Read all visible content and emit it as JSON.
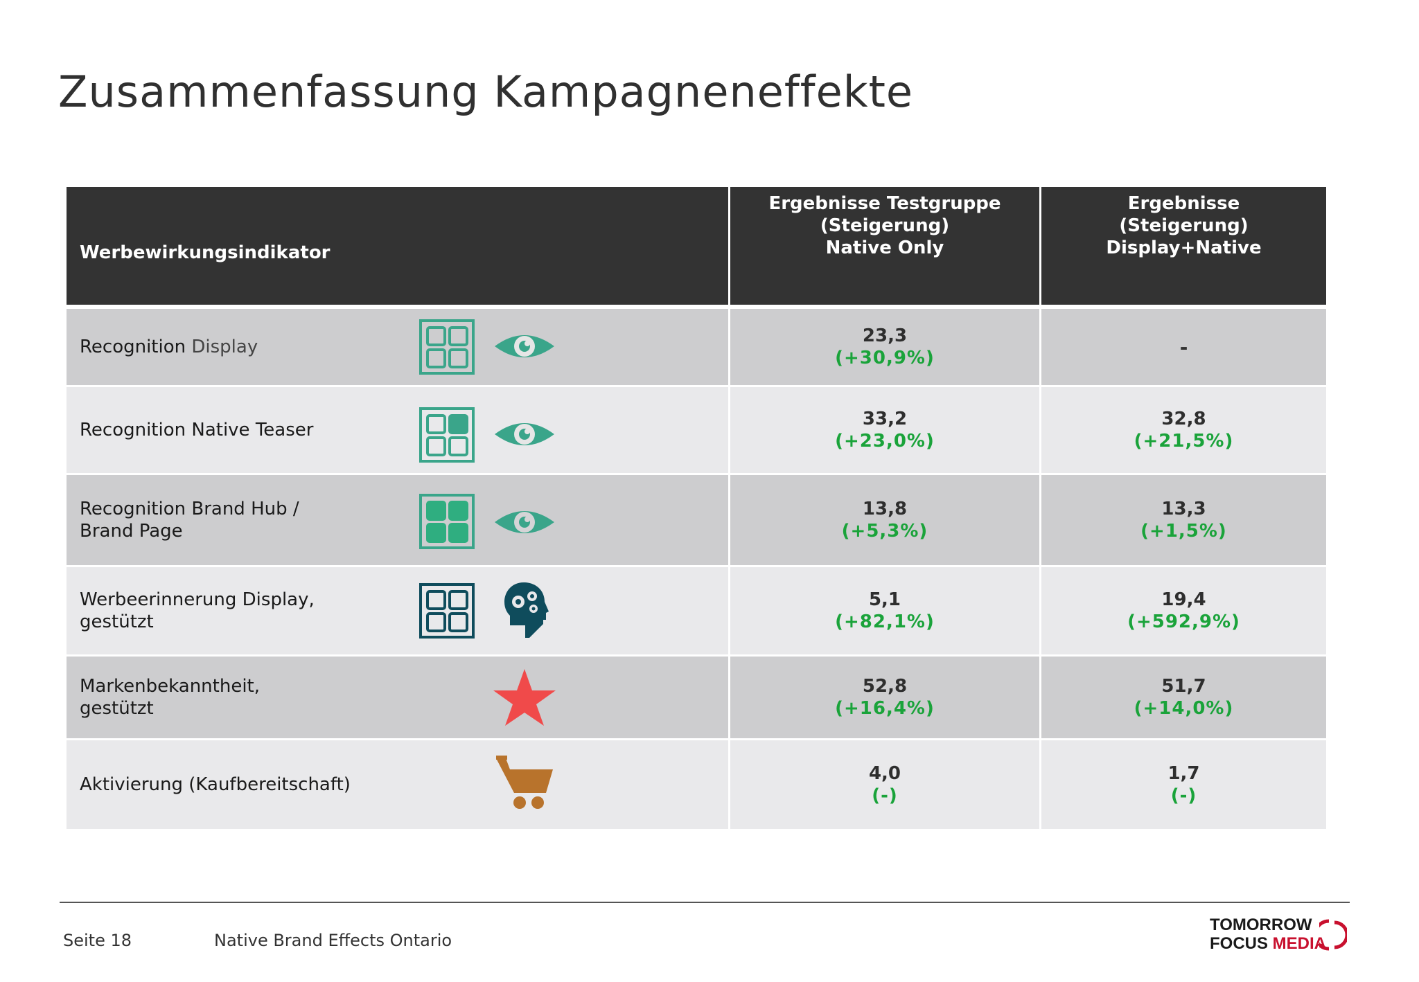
{
  "title": "Zusammenfassung Kampagneneffekte",
  "table": {
    "headers": {
      "indicator": "Werbewirkungsindikator",
      "native_only": "Ergebnisse Testgruppe\n(Steigerung)\nNative Only",
      "display_native": "Ergebnisse\n(Steigerung)\nDisplay+Native"
    },
    "rows": [
      {
        "label_main": "Recognition ",
        "label_sub": "Display",
        "icons": [
          "grid-outline-icon",
          "eye-icon"
        ],
        "native_only_value": "23,3",
        "native_only_pct": "(+30,9%)",
        "display_native_value": "-",
        "display_native_pct": ""
      },
      {
        "label_main": "Recognition Native Teaser",
        "label_sub": "",
        "icons": [
          "grid-one-filled-icon",
          "eye-icon"
        ],
        "native_only_value": "33,2",
        "native_only_pct": "(+23,0%)",
        "display_native_value": "32,8",
        "display_native_pct": "(+21,5%)"
      },
      {
        "label_main": "Recognition Brand Hub /\nBrand Page",
        "label_sub": "",
        "icons": [
          "grid-filled-icon",
          "eye-icon"
        ],
        "native_only_value": "13,8",
        "native_only_pct": "(+5,3%)",
        "display_native_value": "13,3",
        "display_native_pct": "(+1,5%)"
      },
      {
        "label_main": "Werbeerinnerung Display,\n gestützt",
        "label_sub": "",
        "icons": [
          "grid-outline-dark-icon",
          "head-gears-icon"
        ],
        "native_only_value": "5,1",
        "native_only_pct": "(+82,1%)",
        "display_native_value": "19,4",
        "display_native_pct": "(+592,9%)"
      },
      {
        "label_main": "Markenbekanntheit,\n gestützt",
        "label_sub": "",
        "icons": [
          "star-icon"
        ],
        "native_only_value": "52,8",
        "native_only_pct": "(+16,4%)",
        "display_native_value": "51,7",
        "display_native_pct": "(+14,0%)"
      },
      {
        "label_main": "Aktivierung (Kaufbereitschaft)",
        "label_sub": "",
        "icons": [
          "shopping-cart-icon"
        ],
        "native_only_value": "4,0",
        "native_only_pct": "(-)",
        "display_native_value": "1,7",
        "display_native_pct": "(-)"
      }
    ]
  },
  "footer": {
    "page": "Seite 18",
    "doc_title": "Native Brand Effects Ontario",
    "logo_line1": "TOMORROW",
    "logo_line2a": "FOCUS ",
    "logo_line2b": "MEDIA"
  },
  "colors": {
    "header_bg": "#333333",
    "row_dark": "#cdcdcf",
    "row_light": "#e9e9eb",
    "pct_green": "#1aa33a",
    "icon_teal": "#3aa58a",
    "icon_navy": "#0f4c5c",
    "star_red": "#f04a4a",
    "cart_brown": "#b8732c",
    "logo_red": "#c8102e"
  }
}
